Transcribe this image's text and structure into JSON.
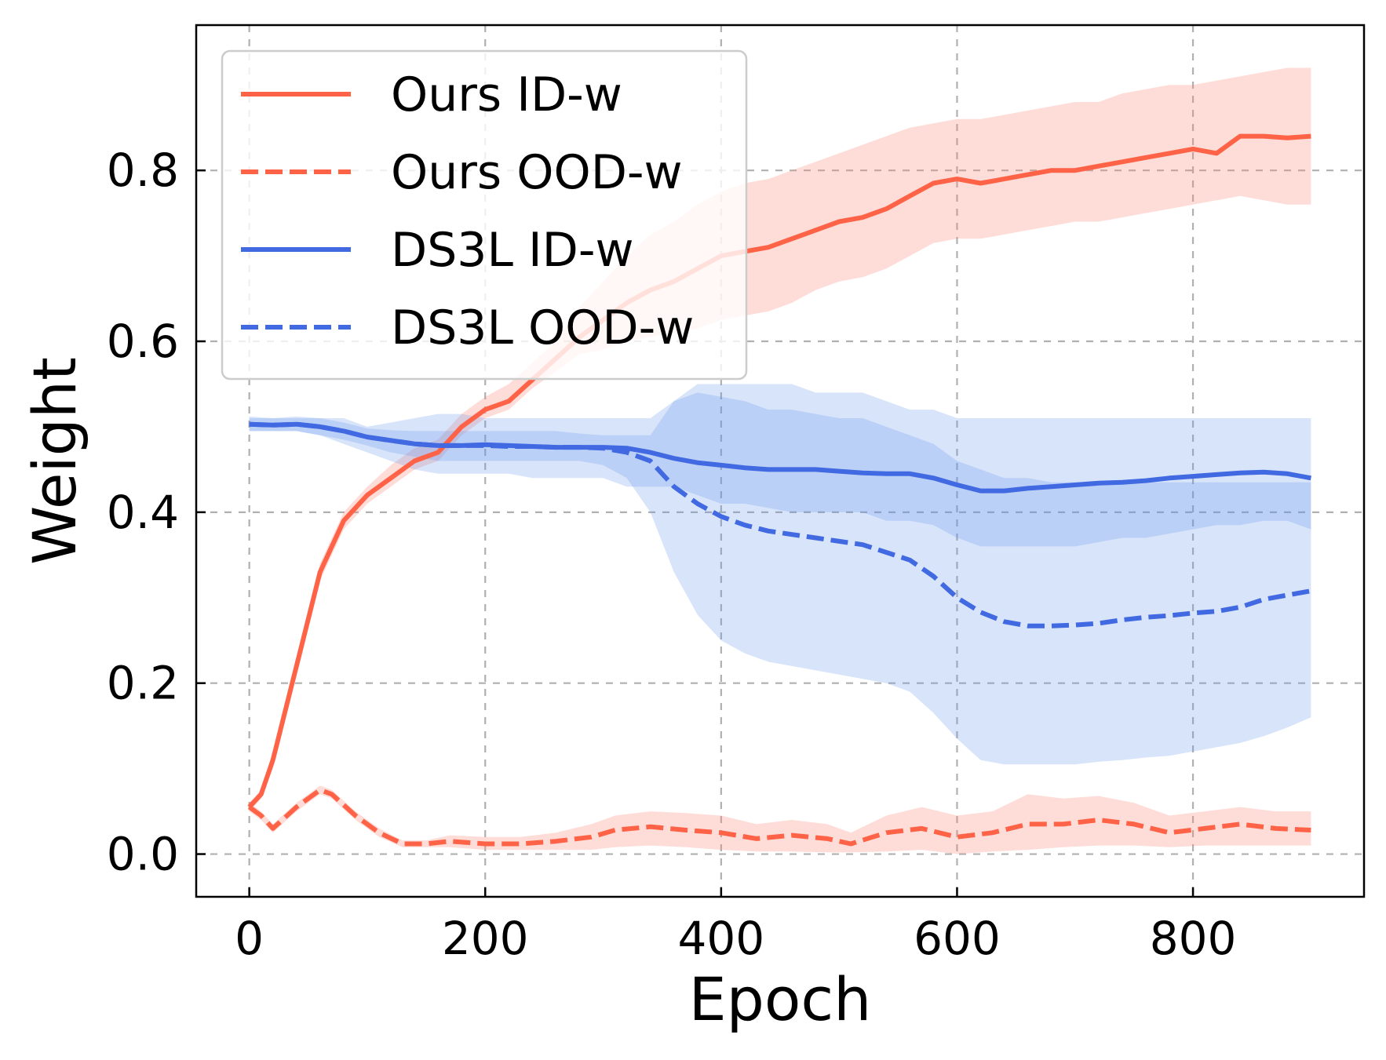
{
  "chart_data": {
    "type": "line",
    "title": "",
    "xlabel": "Epoch",
    "ylabel": "Weight",
    "xlim": [
      -45,
      945
    ],
    "ylim": [
      -0.05,
      0.97
    ],
    "xticks": [
      0,
      200,
      400,
      600,
      800
    ],
    "yticks": [
      0.0,
      0.2,
      0.4,
      0.6,
      0.8
    ],
    "xtick_labels": [
      "0",
      "200",
      "400",
      "600",
      "800"
    ],
    "ytick_labels": [
      "0.0",
      "0.2",
      "0.4",
      "0.6",
      "0.8"
    ],
    "grid": true,
    "legend_position": "top-left",
    "series": [
      {
        "name": "Ours ID-w",
        "color": "#FF6347",
        "linestyle": "solid",
        "x": [
          0,
          10,
          20,
          40,
          60,
          80,
          100,
          120,
          140,
          160,
          180,
          200,
          220,
          240,
          260,
          280,
          300,
          320,
          340,
          360,
          380,
          400,
          420,
          440,
          460,
          480,
          500,
          520,
          540,
          560,
          580,
          600,
          620,
          640,
          660,
          680,
          700,
          720,
          740,
          760,
          780,
          800,
          820,
          840,
          860,
          880,
          900
        ],
        "values": [
          0.055,
          0.07,
          0.11,
          0.22,
          0.33,
          0.39,
          0.42,
          0.44,
          0.46,
          0.47,
          0.5,
          0.52,
          0.53,
          0.555,
          0.58,
          0.605,
          0.625,
          0.645,
          0.66,
          0.67,
          0.685,
          0.7,
          0.705,
          0.71,
          0.72,
          0.73,
          0.74,
          0.745,
          0.755,
          0.77,
          0.785,
          0.79,
          0.785,
          0.79,
          0.795,
          0.8,
          0.8,
          0.805,
          0.81,
          0.815,
          0.82,
          0.825,
          0.82,
          0.84,
          0.84,
          0.838,
          0.84
        ],
        "band_lower": [
          0.05,
          0.065,
          0.1,
          0.21,
          0.32,
          0.38,
          0.41,
          0.43,
          0.45,
          0.46,
          0.49,
          0.51,
          0.52,
          0.545,
          0.565,
          0.585,
          0.59,
          0.6,
          0.605,
          0.61,
          0.615,
          0.625,
          0.63,
          0.635,
          0.645,
          0.66,
          0.67,
          0.675,
          0.685,
          0.7,
          0.715,
          0.72,
          0.72,
          0.725,
          0.73,
          0.735,
          0.74,
          0.74,
          0.745,
          0.75,
          0.755,
          0.76,
          0.765,
          0.77,
          0.765,
          0.76,
          0.76
        ],
        "band_upper": [
          0.06,
          0.075,
          0.12,
          0.23,
          0.34,
          0.4,
          0.43,
          0.455,
          0.475,
          0.485,
          0.515,
          0.535,
          0.55,
          0.575,
          0.6,
          0.64,
          0.67,
          0.7,
          0.725,
          0.74,
          0.76,
          0.775,
          0.785,
          0.79,
          0.8,
          0.81,
          0.82,
          0.83,
          0.84,
          0.85,
          0.855,
          0.86,
          0.86,
          0.865,
          0.87,
          0.875,
          0.88,
          0.88,
          0.89,
          0.895,
          0.9,
          0.9,
          0.905,
          0.91,
          0.915,
          0.92,
          0.92
        ]
      },
      {
        "name": "Ours OOD-w",
        "color": "#FF6347",
        "linestyle": "dashed",
        "x": [
          0,
          10,
          20,
          40,
          60,
          70,
          90,
          110,
          130,
          150,
          170,
          200,
          230,
          260,
          290,
          310,
          340,
          370,
          400,
          430,
          460,
          490,
          510,
          540,
          570,
          600,
          630,
          660,
          690,
          720,
          750,
          780,
          810,
          840,
          870,
          900
        ],
        "values": [
          0.055,
          0.045,
          0.03,
          0.055,
          0.075,
          0.07,
          0.045,
          0.025,
          0.012,
          0.012,
          0.015,
          0.012,
          0.012,
          0.015,
          0.02,
          0.028,
          0.032,
          0.028,
          0.025,
          0.018,
          0.022,
          0.018,
          0.012,
          0.025,
          0.03,
          0.02,
          0.025,
          0.035,
          0.035,
          0.04,
          0.035,
          0.025,
          0.03,
          0.035,
          0.03,
          0.028
        ],
        "band_lower": [
          0.05,
          0.04,
          0.025,
          0.05,
          0.07,
          0.065,
          0.04,
          0.02,
          0.008,
          0.008,
          0.008,
          0.005,
          0.005,
          0.005,
          0.005,
          0.008,
          0.01,
          0.008,
          0.005,
          0.003,
          0.003,
          0.002,
          0.002,
          0.003,
          0.005,
          0.0,
          0.003,
          0.005,
          0.008,
          0.01,
          0.01,
          0.008,
          0.01,
          0.01,
          0.01,
          0.01
        ],
        "band_upper": [
          0.06,
          0.05,
          0.035,
          0.06,
          0.08,
          0.075,
          0.05,
          0.03,
          0.016,
          0.016,
          0.022,
          0.02,
          0.02,
          0.025,
          0.035,
          0.045,
          0.05,
          0.048,
          0.045,
          0.035,
          0.04,
          0.035,
          0.025,
          0.045,
          0.055,
          0.045,
          0.05,
          0.07,
          0.065,
          0.068,
          0.06,
          0.045,
          0.05,
          0.055,
          0.05,
          0.05
        ]
      },
      {
        "name": "DS3L ID-w",
        "color": "#4169E1",
        "linestyle": "solid",
        "x": [
          0,
          20,
          40,
          60,
          80,
          100,
          120,
          140,
          160,
          180,
          200,
          220,
          240,
          260,
          280,
          300,
          320,
          340,
          360,
          380,
          400,
          420,
          440,
          460,
          480,
          500,
          520,
          540,
          560,
          580,
          600,
          620,
          640,
          660,
          680,
          700,
          720,
          740,
          760,
          780,
          800,
          820,
          840,
          860,
          880,
          900
        ],
        "values": [
          0.503,
          0.502,
          0.503,
          0.5,
          0.495,
          0.488,
          0.484,
          0.48,
          0.478,
          0.478,
          0.479,
          0.478,
          0.477,
          0.476,
          0.476,
          0.476,
          0.475,
          0.47,
          0.463,
          0.458,
          0.455,
          0.452,
          0.45,
          0.45,
          0.45,
          0.448,
          0.446,
          0.445,
          0.445,
          0.44,
          0.432,
          0.425,
          0.425,
          0.428,
          0.43,
          0.432,
          0.434,
          0.435,
          0.437,
          0.44,
          0.442,
          0.444,
          0.446,
          0.447,
          0.445,
          0.44
        ],
        "band_lower": [
          0.495,
          0.495,
          0.495,
          0.49,
          0.48,
          0.47,
          0.46,
          0.45,
          0.445,
          0.445,
          0.445,
          0.445,
          0.44,
          0.44,
          0.44,
          0.44,
          0.43,
          0.43,
          0.43,
          0.42,
          0.41,
          0.41,
          0.405,
          0.4,
          0.4,
          0.4,
          0.4,
          0.39,
          0.39,
          0.385,
          0.37,
          0.36,
          0.36,
          0.36,
          0.36,
          0.36,
          0.365,
          0.37,
          0.37,
          0.375,
          0.38,
          0.385,
          0.385,
          0.39,
          0.39,
          0.38
        ],
        "band_upper": [
          0.51,
          0.51,
          0.51,
          0.51,
          0.51,
          0.5,
          0.505,
          0.51,
          0.515,
          0.515,
          0.51,
          0.51,
          0.51,
          0.51,
          0.51,
          0.51,
          0.51,
          0.51,
          0.53,
          0.55,
          0.55,
          0.55,
          0.55,
          0.55,
          0.54,
          0.54,
          0.54,
          0.53,
          0.52,
          0.52,
          0.51,
          0.51,
          0.51,
          0.51,
          0.51,
          0.51,
          0.51,
          0.51,
          0.51,
          0.51,
          0.51,
          0.51,
          0.51,
          0.51,
          0.51,
          0.51
        ]
      },
      {
        "name": "DS3L OOD-w",
        "color": "#4169E1",
        "linestyle": "dashed",
        "x": [
          0,
          20,
          40,
          60,
          80,
          100,
          120,
          140,
          160,
          180,
          200,
          220,
          240,
          260,
          280,
          300,
          320,
          340,
          360,
          380,
          400,
          420,
          440,
          460,
          480,
          500,
          520,
          540,
          560,
          580,
          600,
          620,
          640,
          660,
          680,
          700,
          720,
          740,
          760,
          780,
          800,
          820,
          840,
          860,
          880,
          900
        ],
        "values": [
          0.503,
          0.502,
          0.503,
          0.5,
          0.495,
          0.488,
          0.484,
          0.48,
          0.478,
          0.478,
          0.478,
          0.477,
          0.477,
          0.476,
          0.476,
          0.475,
          0.47,
          0.46,
          0.43,
          0.41,
          0.395,
          0.385,
          0.378,
          0.374,
          0.37,
          0.366,
          0.362,
          0.353,
          0.344,
          0.325,
          0.3,
          0.283,
          0.272,
          0.267,
          0.267,
          0.268,
          0.27,
          0.274,
          0.277,
          0.279,
          0.282,
          0.284,
          0.289,
          0.298,
          0.303,
          0.308
        ],
        "band_lower": [
          0.495,
          0.495,
          0.495,
          0.49,
          0.485,
          0.478,
          0.47,
          0.465,
          0.46,
          0.46,
          0.46,
          0.46,
          0.46,
          0.46,
          0.46,
          0.455,
          0.44,
          0.4,
          0.33,
          0.28,
          0.25,
          0.235,
          0.225,
          0.22,
          0.215,
          0.21,
          0.205,
          0.2,
          0.19,
          0.165,
          0.135,
          0.11,
          0.105,
          0.105,
          0.105,
          0.105,
          0.108,
          0.11,
          0.113,
          0.115,
          0.12,
          0.125,
          0.13,
          0.138,
          0.148,
          0.16
        ],
        "band_upper": [
          0.512,
          0.51,
          0.512,
          0.51,
          0.505,
          0.498,
          0.496,
          0.495,
          0.495,
          0.495,
          0.495,
          0.495,
          0.495,
          0.495,
          0.492,
          0.49,
          0.49,
          0.49,
          0.53,
          0.54,
          0.535,
          0.53,
          0.52,
          0.52,
          0.515,
          0.51,
          0.51,
          0.5,
          0.49,
          0.48,
          0.46,
          0.45,
          0.44,
          0.44,
          0.435,
          0.435,
          0.435,
          0.435,
          0.435,
          0.435,
          0.435,
          0.435,
          0.435,
          0.435,
          0.435,
          0.435
        ]
      }
    ]
  }
}
